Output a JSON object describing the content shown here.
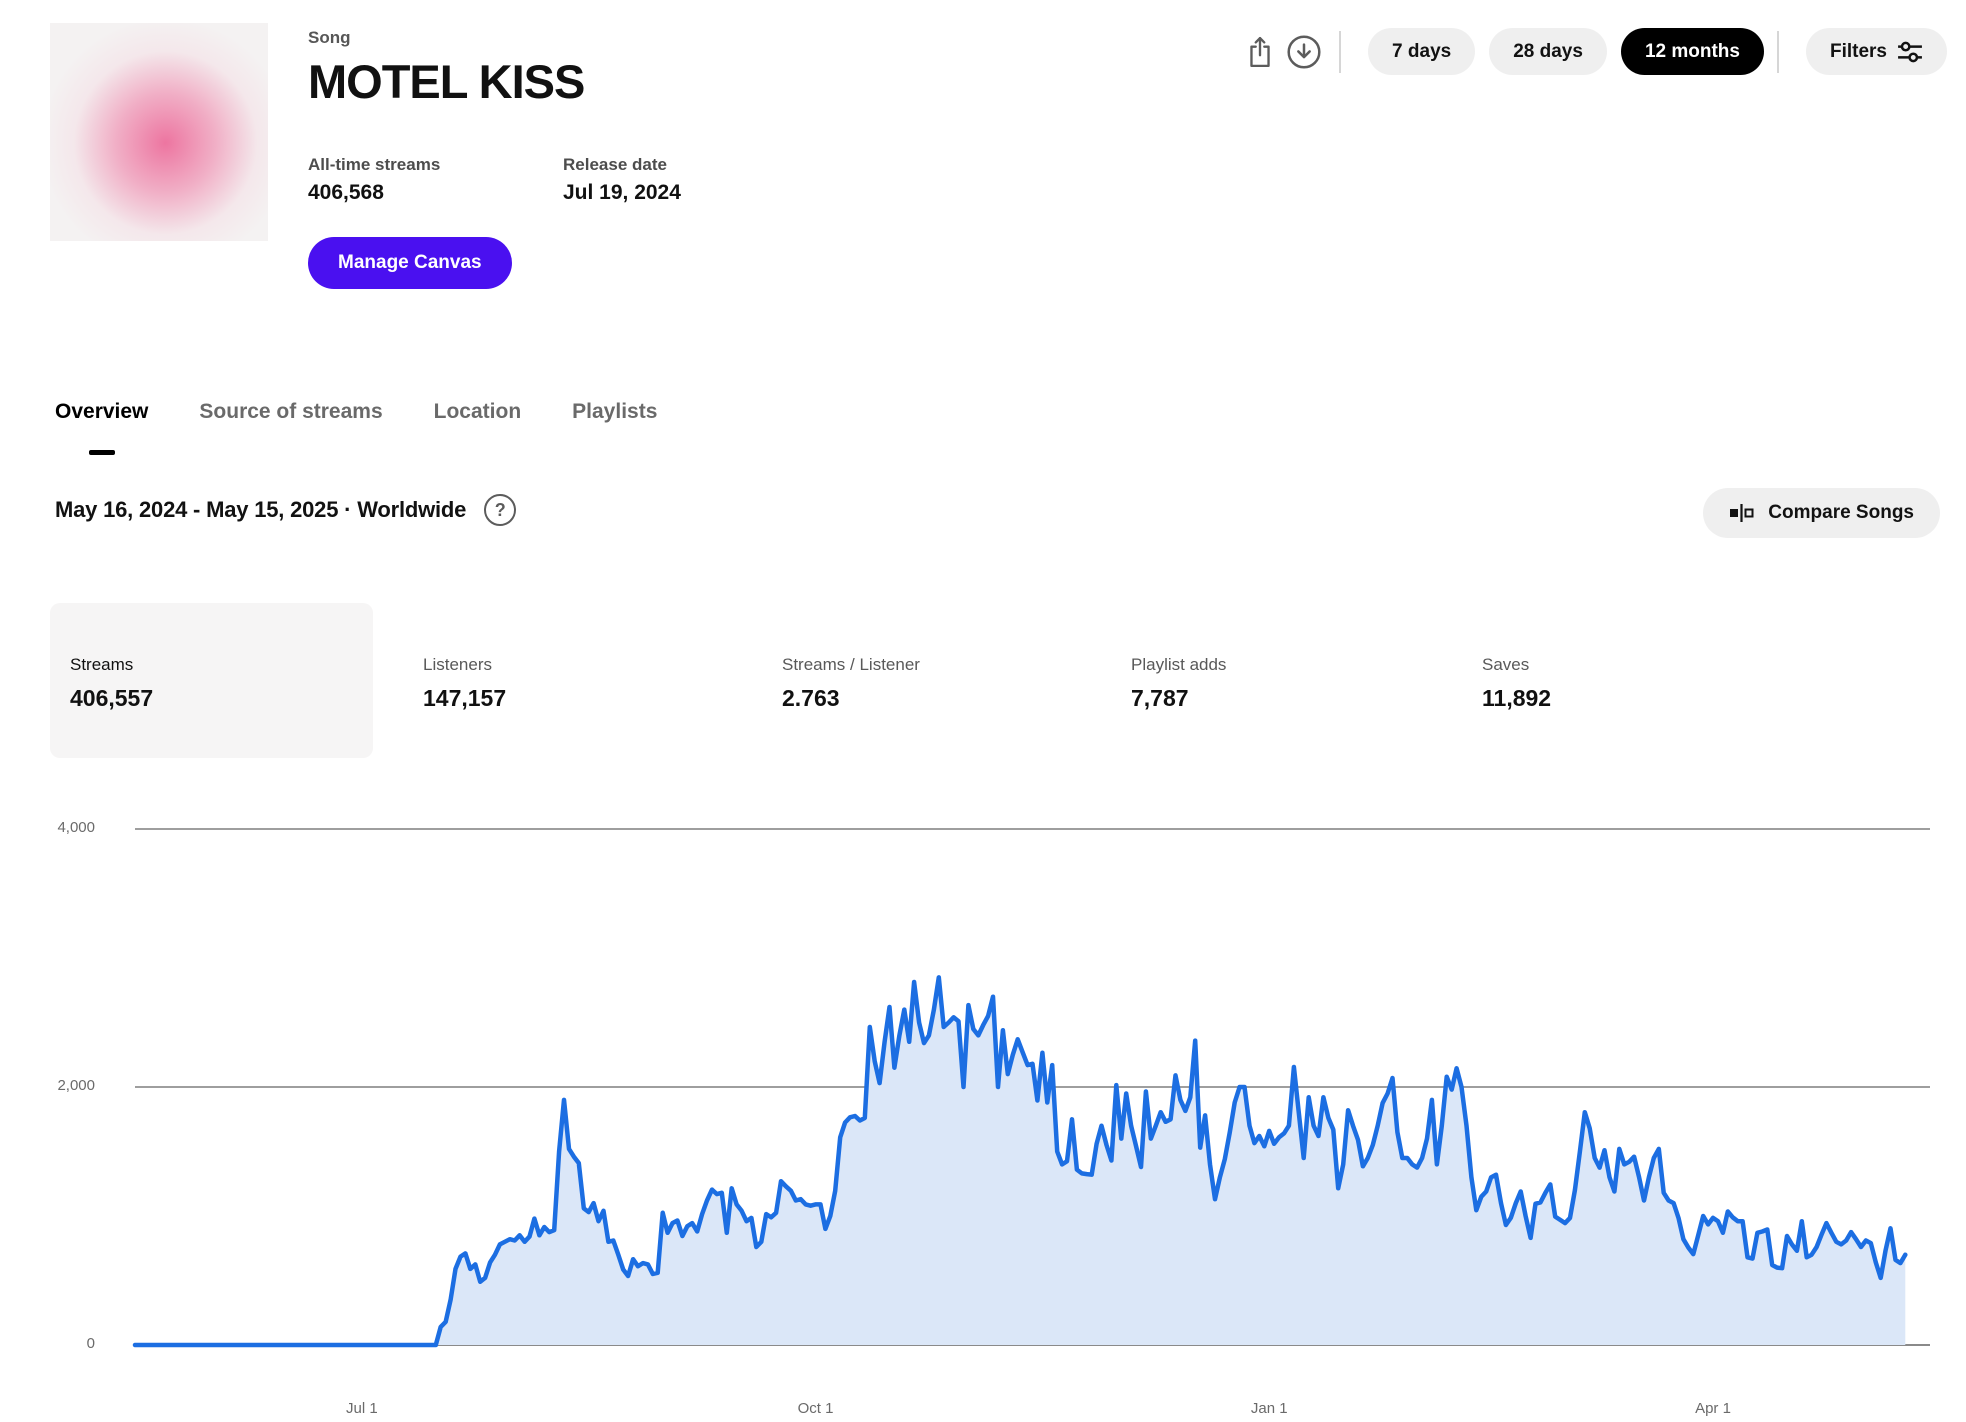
{
  "header": {
    "song_label": "Song",
    "title": "MOTEL KISS",
    "all_time_streams_label": "All-time streams",
    "all_time_streams_value": "406,568",
    "release_date_label": "Release date",
    "release_date_value": "Jul 19, 2024",
    "manage_canvas_label": "Manage Canvas",
    "range_buttons": [
      {
        "label": "7 days",
        "active": false
      },
      {
        "label": "28 days",
        "active": false
      },
      {
        "label": "12 months",
        "active": true
      }
    ],
    "filters_label": "Filters"
  },
  "tabs": [
    {
      "label": "Overview",
      "active": true
    },
    {
      "label": "Source of streams",
      "active": false
    },
    {
      "label": "Location",
      "active": false
    },
    {
      "label": "Playlists",
      "active": false
    }
  ],
  "date_range": {
    "text": "May 16, 2024 - May 15, 2025 · Worldwide",
    "help_glyph": "?"
  },
  "compare_songs_label": "Compare Songs",
  "metrics": [
    {
      "label": "Streams",
      "value": "406,557",
      "selected": true
    },
    {
      "label": "Listeners",
      "value": "147,157",
      "selected": false
    },
    {
      "label": "Streams / Listener",
      "value": "2.763",
      "selected": false
    },
    {
      "label": "Playlist adds",
      "value": "7,787",
      "selected": false
    },
    {
      "label": "Saves",
      "value": "11,892",
      "selected": false
    }
  ],
  "chart_data": {
    "type": "area",
    "title": "Daily streams, May 16 2024 - May 15 2025",
    "x_unit": "days since May 16, 2024",
    "x_domain_days": [
      0,
      364
    ],
    "x_tick_days": [
      46,
      138,
      230,
      320
    ],
    "x_range_labels": [
      "Jul 1",
      "Oct 1",
      "Jan 1",
      "Apr 1"
    ],
    "ylim": [
      0,
      4000
    ],
    "y_ticks": [
      0,
      2000,
      4000
    ],
    "y_tick_labels": [
      "0",
      "2,000",
      "4,000"
    ],
    "grid": true,
    "legend": false,
    "line_color": "#1c6ee2",
    "fill_color": "#dbe7f8",
    "grid_color": "#9e9e9e",
    "baseline_color": "#8a8a8a",
    "series": [
      {
        "name": "Streams",
        "points": [
          [
            0,
            0
          ],
          [
            20,
            0
          ],
          [
            40,
            0
          ],
          [
            61,
            0
          ],
          [
            62,
            140
          ],
          [
            63,
            180
          ],
          [
            64,
            350
          ],
          [
            65,
            590
          ],
          [
            66,
            685
          ],
          [
            67,
            710
          ],
          [
            68,
            590
          ],
          [
            69,
            625
          ],
          [
            70,
            490
          ],
          [
            71,
            520
          ],
          [
            72,
            640
          ],
          [
            73,
            700
          ],
          [
            74,
            780
          ],
          [
            75,
            800
          ],
          [
            76,
            820
          ],
          [
            77,
            810
          ],
          [
            78,
            850
          ],
          [
            79,
            800
          ],
          [
            80,
            840
          ],
          [
            81,
            980
          ],
          [
            82,
            850
          ],
          [
            83,
            915
          ],
          [
            84,
            875
          ],
          [
            85,
            890
          ],
          [
            86,
            1500
          ],
          [
            87,
            1900
          ],
          [
            88,
            1520
          ],
          [
            89,
            1460
          ],
          [
            90,
            1410
          ],
          [
            91,
            1060
          ],
          [
            92,
            1030
          ],
          [
            93,
            1100
          ],
          [
            94,
            960
          ],
          [
            95,
            1040
          ],
          [
            96,
            800
          ],
          [
            97,
            810
          ],
          [
            98,
            700
          ],
          [
            99,
            585
          ],
          [
            100,
            535
          ],
          [
            101,
            665
          ],
          [
            102,
            610
          ],
          [
            103,
            635
          ],
          [
            104,
            625
          ],
          [
            105,
            550
          ],
          [
            106,
            560
          ],
          [
            107,
            1025
          ],
          [
            108,
            870
          ],
          [
            109,
            945
          ],
          [
            110,
            965
          ],
          [
            111,
            845
          ],
          [
            112,
            920
          ],
          [
            113,
            945
          ],
          [
            114,
            880
          ],
          [
            115,
            1015
          ],
          [
            116,
            1120
          ],
          [
            117,
            1205
          ],
          [
            118,
            1170
          ],
          [
            119,
            1180
          ],
          [
            120,
            870
          ],
          [
            121,
            1215
          ],
          [
            122,
            1090
          ],
          [
            123,
            1040
          ],
          [
            124,
            960
          ],
          [
            125,
            985
          ],
          [
            126,
            760
          ],
          [
            127,
            800
          ],
          [
            128,
            1015
          ],
          [
            129,
            990
          ],
          [
            130,
            1025
          ],
          [
            131,
            1270
          ],
          [
            132,
            1230
          ],
          [
            133,
            1195
          ],
          [
            134,
            1120
          ],
          [
            135,
            1130
          ],
          [
            136,
            1090
          ],
          [
            137,
            1080
          ],
          [
            138,
            1090
          ],
          [
            139,
            1090
          ],
          [
            140,
            900
          ],
          [
            141,
            1000
          ],
          [
            142,
            1195
          ],
          [
            143,
            1610
          ],
          [
            144,
            1725
          ],
          [
            145,
            1765
          ],
          [
            146,
            1775
          ],
          [
            147,
            1740
          ],
          [
            148,
            1760
          ],
          [
            149,
            2465
          ],
          [
            150,
            2200
          ],
          [
            151,
            2030
          ],
          [
            152,
            2350
          ],
          [
            153,
            2620
          ],
          [
            154,
            2150
          ],
          [
            155,
            2400
          ],
          [
            156,
            2600
          ],
          [
            157,
            2350
          ],
          [
            158,
            2814
          ],
          [
            159,
            2500
          ],
          [
            160,
            2340
          ],
          [
            161,
            2400
          ],
          [
            162,
            2600
          ],
          [
            163,
            2850
          ],
          [
            164,
            2465
          ],
          [
            165,
            2500
          ],
          [
            166,
            2540
          ],
          [
            167,
            2510
          ],
          [
            168,
            2000
          ],
          [
            169,
            2635
          ],
          [
            170,
            2450
          ],
          [
            171,
            2400
          ],
          [
            172,
            2480
          ],
          [
            173,
            2550
          ],
          [
            174,
            2700
          ],
          [
            175,
            2000
          ],
          [
            176,
            2440
          ],
          [
            177,
            2100
          ],
          [
            178,
            2250
          ],
          [
            179,
            2370
          ],
          [
            180,
            2270
          ],
          [
            181,
            2170
          ],
          [
            182,
            2180
          ],
          [
            183,
            1895
          ],
          [
            184,
            2265
          ],
          [
            185,
            1880
          ],
          [
            186,
            2170
          ],
          [
            187,
            1500
          ],
          [
            188,
            1400
          ],
          [
            189,
            1425
          ],
          [
            190,
            1750
          ],
          [
            191,
            1360
          ],
          [
            192,
            1330
          ],
          [
            193,
            1325
          ],
          [
            194,
            1320
          ],
          [
            195,
            1560
          ],
          [
            196,
            1700
          ],
          [
            197,
            1550
          ],
          [
            198,
            1430
          ],
          [
            199,
            2015
          ],
          [
            200,
            1600
          ],
          [
            201,
            1950
          ],
          [
            202,
            1700
          ],
          [
            203,
            1540
          ],
          [
            204,
            1380
          ],
          [
            205,
            1965
          ],
          [
            206,
            1600
          ],
          [
            207,
            1700
          ],
          [
            208,
            1805
          ],
          [
            209,
            1730
          ],
          [
            210,
            1750
          ],
          [
            211,
            2090
          ],
          [
            212,
            1900
          ],
          [
            213,
            1815
          ],
          [
            214,
            1920
          ],
          [
            215,
            2360
          ],
          [
            216,
            1530
          ],
          [
            217,
            1780
          ],
          [
            218,
            1400
          ],
          [
            219,
            1130
          ],
          [
            220,
            1300
          ],
          [
            221,
            1440
          ],
          [
            222,
            1650
          ],
          [
            223,
            1880
          ],
          [
            224,
            2000
          ],
          [
            225,
            2000
          ],
          [
            226,
            1700
          ],
          [
            227,
            1565
          ],
          [
            228,
            1620
          ],
          [
            229,
            1540
          ],
          [
            230,
            1660
          ],
          [
            231,
            1560
          ],
          [
            232,
            1610
          ],
          [
            233,
            1640
          ],
          [
            234,
            1700
          ],
          [
            235,
            2155
          ],
          [
            236,
            1800
          ],
          [
            237,
            1450
          ],
          [
            238,
            1920
          ],
          [
            239,
            1700
          ],
          [
            240,
            1620
          ],
          [
            241,
            1920
          ],
          [
            242,
            1760
          ],
          [
            243,
            1670
          ],
          [
            244,
            1215
          ],
          [
            245,
            1400
          ],
          [
            246,
            1820
          ],
          [
            247,
            1700
          ],
          [
            248,
            1590
          ],
          [
            249,
            1385
          ],
          [
            250,
            1450
          ],
          [
            251,
            1550
          ],
          [
            252,
            1700
          ],
          [
            253,
            1875
          ],
          [
            254,
            1950
          ],
          [
            255,
            2070
          ],
          [
            256,
            1650
          ],
          [
            257,
            1450
          ],
          [
            258,
            1450
          ],
          [
            259,
            1400
          ],
          [
            260,
            1375
          ],
          [
            261,
            1450
          ],
          [
            262,
            1600
          ],
          [
            263,
            1900
          ],
          [
            264,
            1400
          ],
          [
            265,
            1700
          ],
          [
            266,
            2080
          ],
          [
            267,
            1980
          ],
          [
            268,
            2145
          ],
          [
            269,
            2000
          ],
          [
            270,
            1700
          ],
          [
            271,
            1300
          ],
          [
            272,
            1045
          ],
          [
            273,
            1150
          ],
          [
            274,
            1190
          ],
          [
            275,
            1300
          ],
          [
            276,
            1320
          ],
          [
            277,
            1100
          ],
          [
            278,
            930
          ],
          [
            279,
            985
          ],
          [
            280,
            1100
          ],
          [
            281,
            1190
          ],
          [
            282,
            1000
          ],
          [
            283,
            830
          ],
          [
            284,
            1095
          ],
          [
            285,
            1105
          ],
          [
            286,
            1180
          ],
          [
            287,
            1245
          ],
          [
            288,
            995
          ],
          [
            289,
            970
          ],
          [
            290,
            945
          ],
          [
            291,
            985
          ],
          [
            292,
            1200
          ],
          [
            293,
            1500
          ],
          [
            294,
            1805
          ],
          [
            295,
            1680
          ],
          [
            296,
            1450
          ],
          [
            297,
            1375
          ],
          [
            298,
            1510
          ],
          [
            299,
            1300
          ],
          [
            300,
            1190
          ],
          [
            301,
            1520
          ],
          [
            302,
            1400
          ],
          [
            303,
            1420
          ],
          [
            304,
            1460
          ],
          [
            305,
            1300
          ],
          [
            306,
            1120
          ],
          [
            307,
            1300
          ],
          [
            308,
            1450
          ],
          [
            309,
            1520
          ],
          [
            310,
            1180
          ],
          [
            311,
            1120
          ],
          [
            312,
            1100
          ],
          [
            313,
            985
          ],
          [
            314,
            820
          ],
          [
            315,
            755
          ],
          [
            316,
            705
          ],
          [
            317,
            850
          ],
          [
            318,
            1000
          ],
          [
            319,
            935
          ],
          [
            320,
            985
          ],
          [
            321,
            960
          ],
          [
            322,
            870
          ],
          [
            323,
            1035
          ],
          [
            324,
            990
          ],
          [
            325,
            960
          ],
          [
            326,
            960
          ],
          [
            327,
            680
          ],
          [
            328,
            670
          ],
          [
            329,
            870
          ],
          [
            330,
            880
          ],
          [
            331,
            895
          ],
          [
            332,
            620
          ],
          [
            333,
            600
          ],
          [
            334,
            595
          ],
          [
            335,
            845
          ],
          [
            336,
            780
          ],
          [
            337,
            730
          ],
          [
            338,
            960
          ],
          [
            339,
            680
          ],
          [
            340,
            700
          ],
          [
            341,
            760
          ],
          [
            342,
            855
          ],
          [
            343,
            945
          ],
          [
            344,
            870
          ],
          [
            345,
            800
          ],
          [
            346,
            780
          ],
          [
            347,
            810
          ],
          [
            348,
            875
          ],
          [
            349,
            820
          ],
          [
            350,
            760
          ],
          [
            351,
            810
          ],
          [
            352,
            790
          ],
          [
            353,
            640
          ],
          [
            354,
            520
          ],
          [
            355,
            735
          ],
          [
            356,
            905
          ],
          [
            357,
            660
          ],
          [
            358,
            635
          ],
          [
            359,
            700
          ]
        ]
      }
    ]
  }
}
